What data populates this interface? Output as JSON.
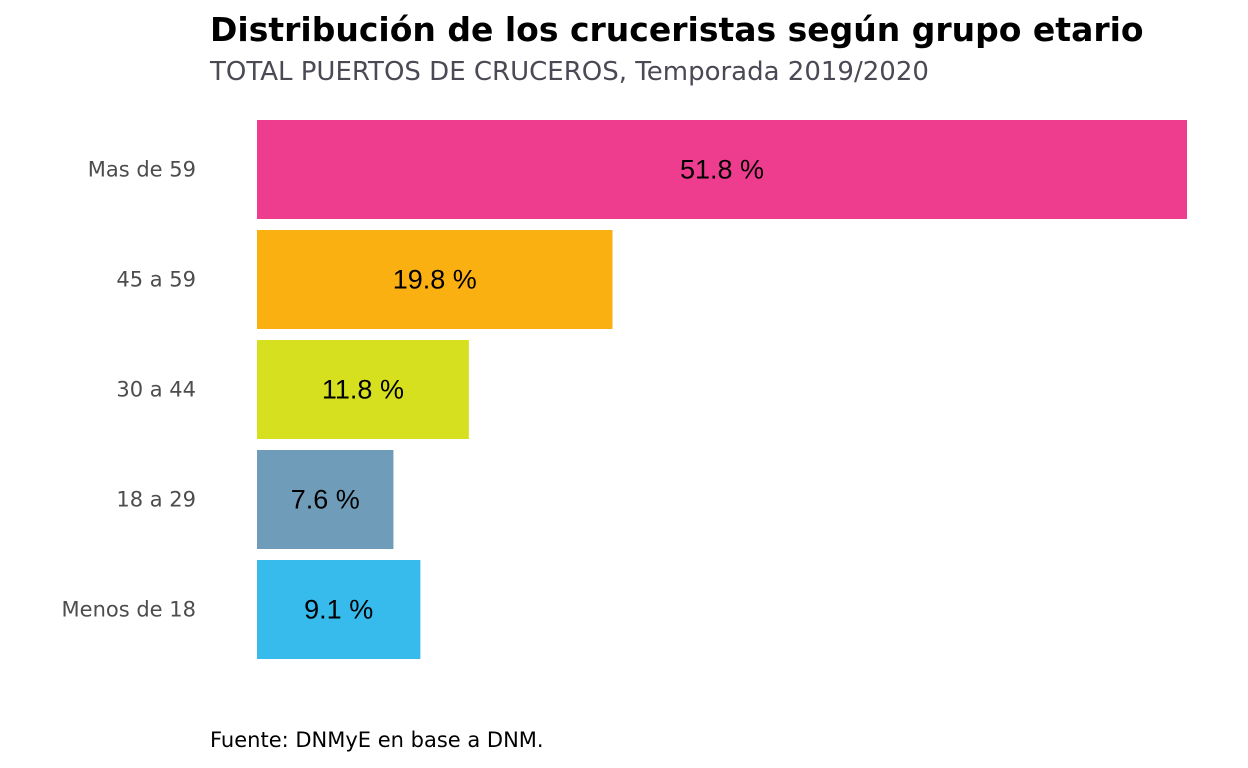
{
  "chart_data": {
    "type": "bar",
    "orientation": "horizontal",
    "title": "Distribución de los cruceristas según grupo etario",
    "subtitle": "TOTAL PUERTOS DE CRUCEROS, Temporada 2019/2020",
    "caption": "Fuente: DNMyE en base a DNM.",
    "xlabel": "",
    "ylabel": "",
    "grid": false,
    "categories": [
      "Mas de 59",
      "45 a 59",
      "30 a 44",
      "18 a 29",
      "Menos de 18"
    ],
    "values": [
      51.8,
      19.8,
      11.8,
      7.6,
      9.1
    ],
    "value_labels": [
      "51.8 %",
      "19.8 %",
      "11.8 %",
      "7.6 %",
      "9.1 %"
    ],
    "colors": [
      "#EE3D8F",
      "#FBB011",
      "#D7E01F",
      "#6F9DB9",
      "#37BBED"
    ],
    "xlim": [
      0,
      51.8
    ]
  }
}
